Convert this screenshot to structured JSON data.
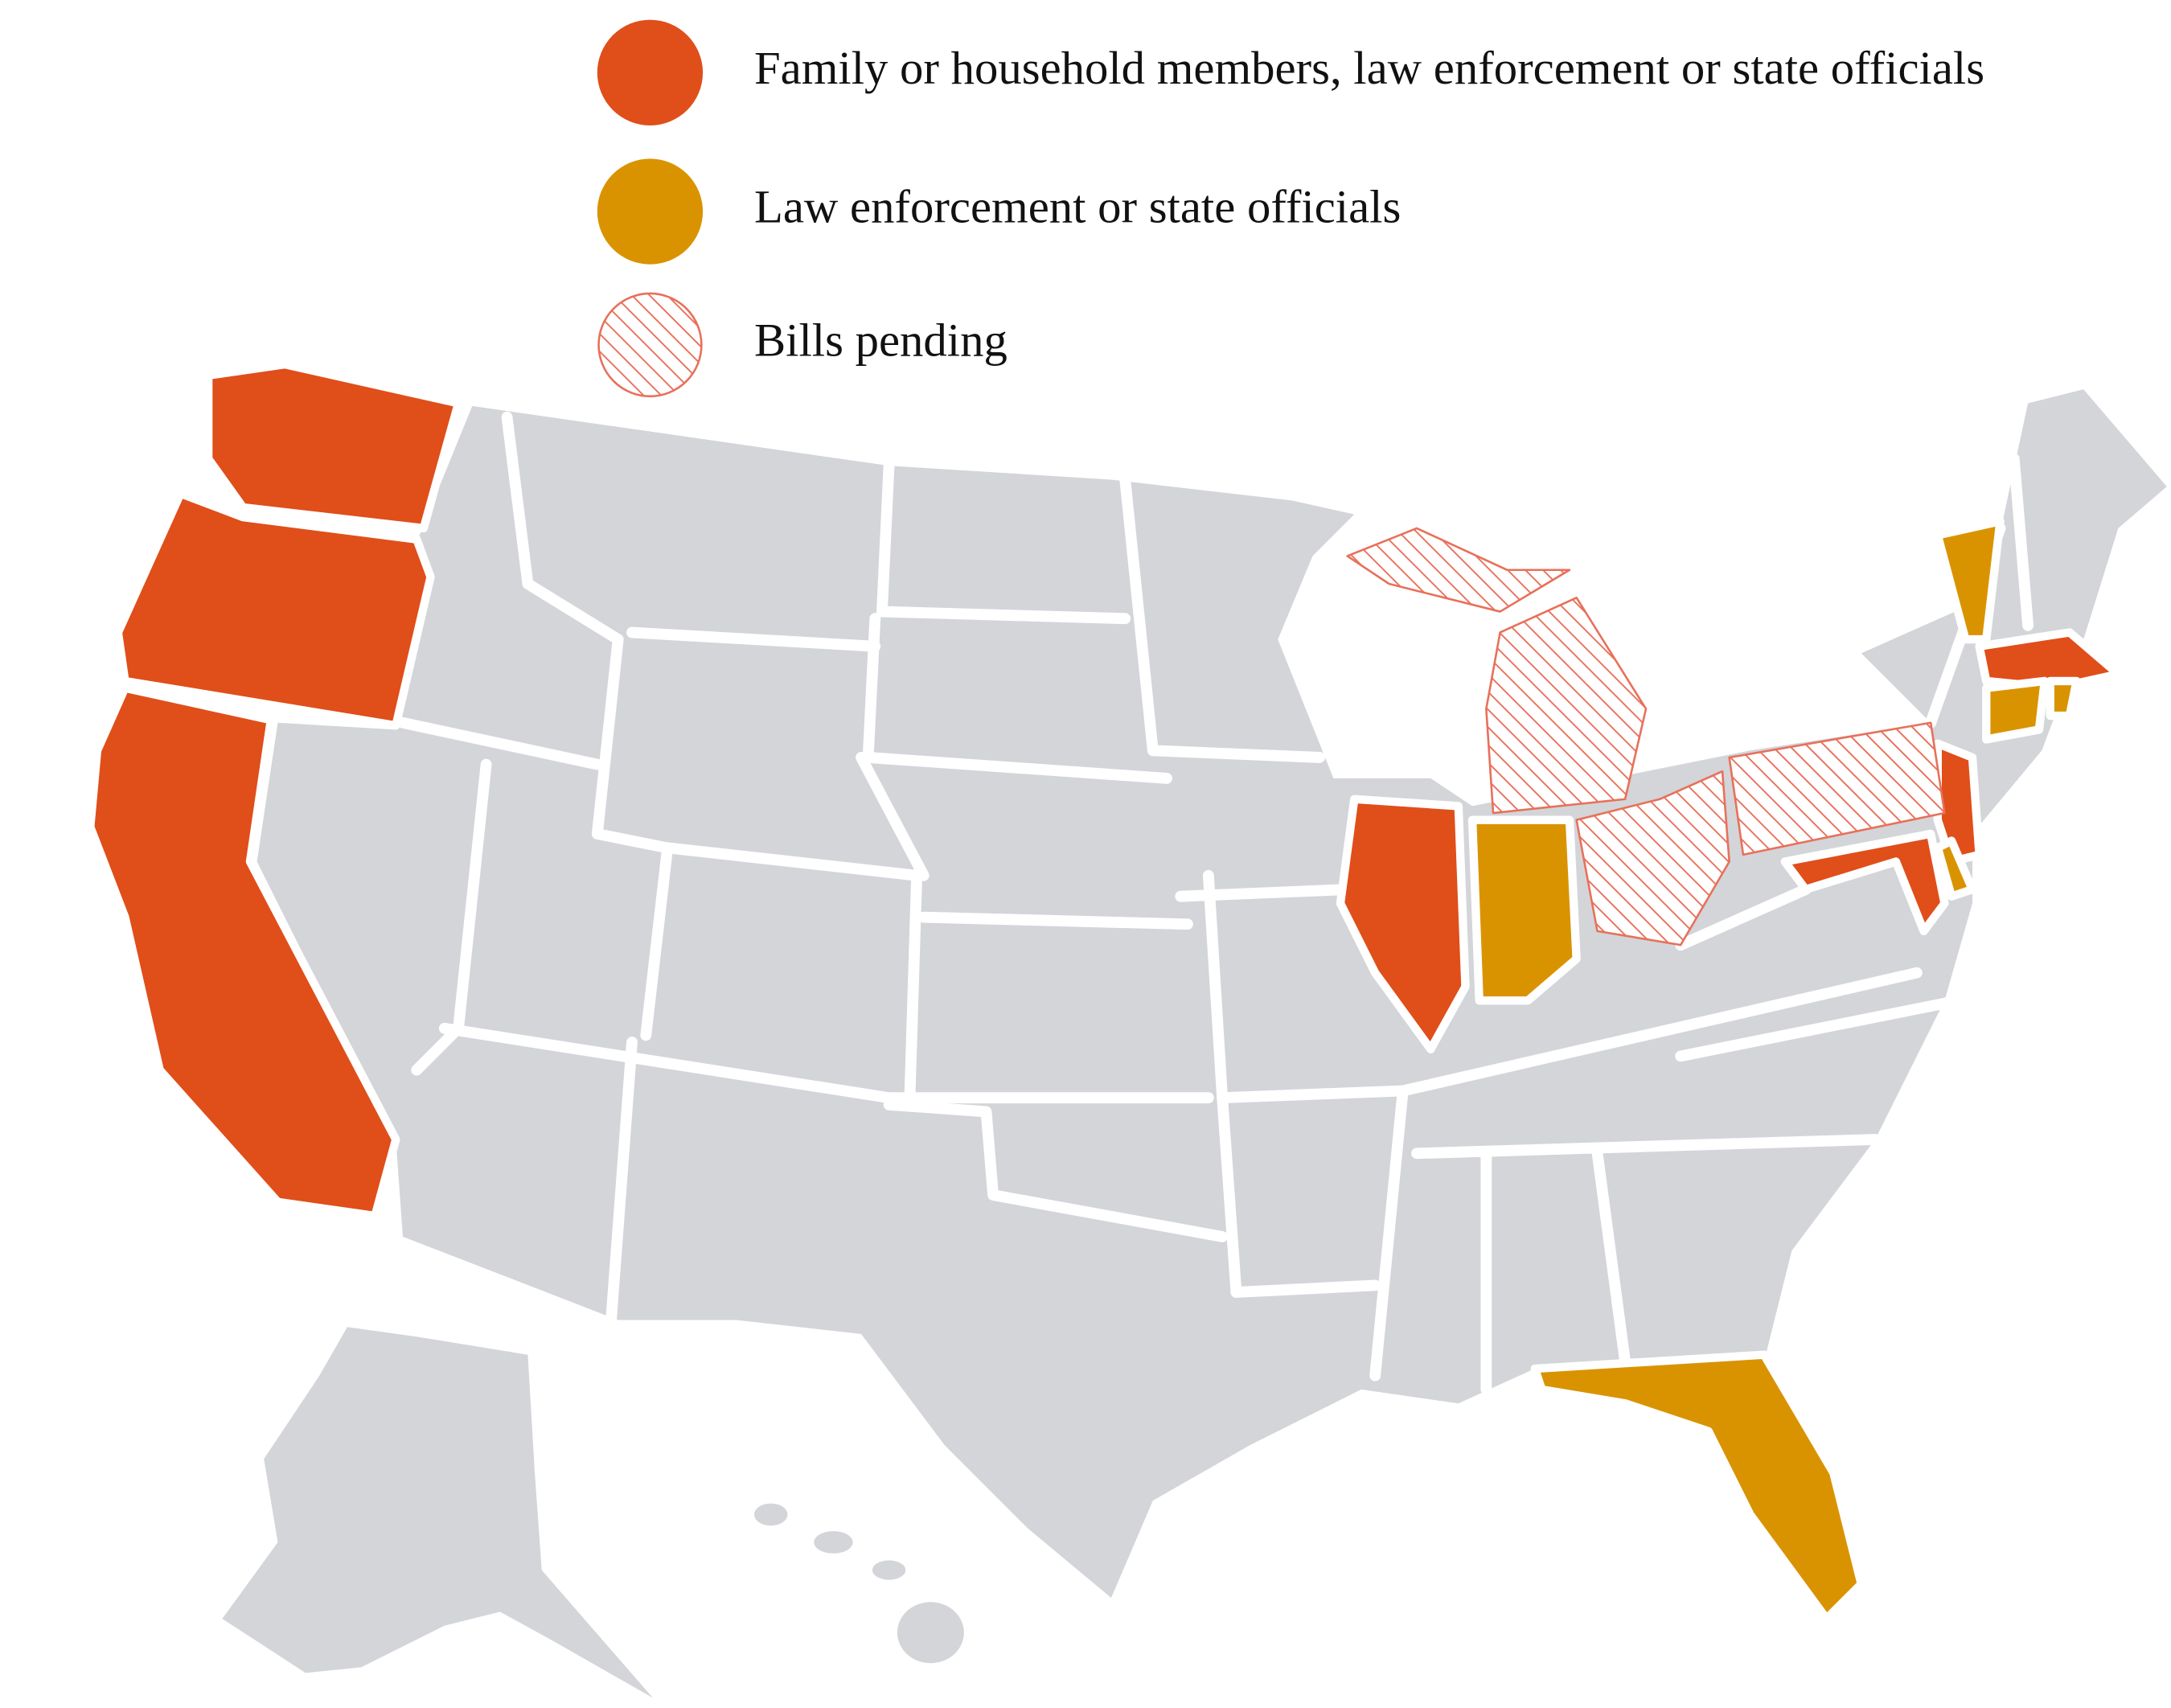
{
  "legend": {
    "items": [
      {
        "label": "Family or household members, law enforcement or state officials",
        "color": "#e04e1a"
      },
      {
        "label": "Law enforcement or state officials",
        "color": "#d99300"
      },
      {
        "label": "Bills pending",
        "color": "#e8705a",
        "pattern": "hatch"
      }
    ]
  }
}
